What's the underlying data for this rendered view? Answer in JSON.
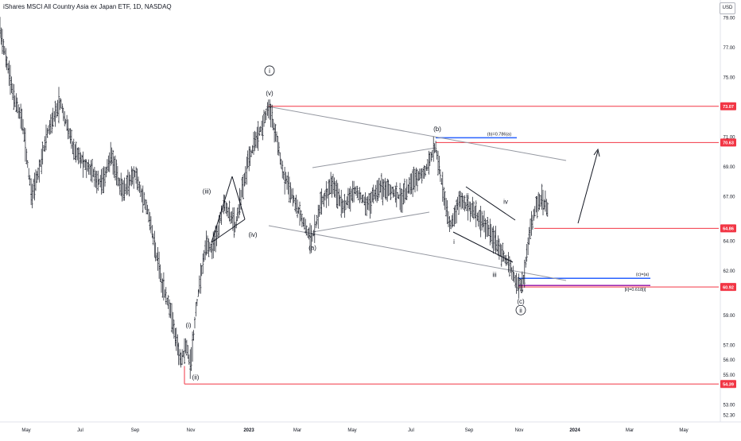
{
  "header": {
    "title": "iShares MSCI All Country Asia ex Japan ETF, 1D, NASDAQ",
    "currency": "USD"
  },
  "chart_data": {
    "type": "candlestick",
    "x_ticks": [
      "May",
      "Jul",
      "Sep",
      "Nov",
      "2023",
      "Mar",
      "May",
      "Jul",
      "Sep",
      "Nov",
      "2024",
      "Mar",
      "May"
    ],
    "y_ticks": [
      "79.00",
      "77.00",
      "75.00",
      "71.00",
      "69.00",
      "67.00",
      "64.00",
      "62.00",
      "59.00",
      "57.00",
      "56.00",
      "55.00",
      "53.00",
      "52.30"
    ],
    "ylim": [
      52.0,
      80.0
    ],
    "price_path": [
      [
        0,
        78.2
      ],
      [
        18,
        73.6
      ],
      [
        28,
        72.1
      ],
      [
        40,
        67.0
      ],
      [
        48,
        68.6
      ],
      [
        60,
        71.3
      ],
      [
        76,
        73.4
      ],
      [
        92,
        70.2
      ],
      [
        110,
        69.0
      ],
      [
        128,
        67.8
      ],
      [
        140,
        69.7
      ],
      [
        154,
        67.2
      ],
      [
        170,
        68.6
      ],
      [
        186,
        66.0
      ],
      [
        195,
        63.6
      ],
      [
        204,
        61.1
      ],
      [
        214,
        59.4
      ],
      [
        222,
        57.2
      ],
      [
        228,
        55.9
      ],
      [
        234,
        57.2
      ],
      [
        240,
        55.4
      ],
      [
        246,
        59.2
      ],
      [
        252,
        61.5
      ],
      [
        260,
        63.8
      ],
      [
        268,
        63.4
      ],
      [
        282,
        66.6
      ],
      [
        296,
        65.0
      ],
      [
        312,
        69.4
      ],
      [
        326,
        71.3
      ],
      [
        338,
        73.0
      ],
      [
        348,
        71.0
      ],
      [
        356,
        68.6
      ],
      [
        368,
        67.0
      ],
      [
        380,
        65.5
      ],
      [
        392,
        64.0
      ],
      [
        404,
        66.6
      ],
      [
        418,
        67.8
      ],
      [
        432,
        66.2
      ],
      [
        446,
        67.5
      ],
      [
        462,
        66.4
      ],
      [
        478,
        67.7
      ],
      [
        492,
        67.4
      ],
      [
        506,
        66.8
      ],
      [
        520,
        68.2
      ],
      [
        534,
        68.6
      ],
      [
        548,
        70.4
      ],
      [
        556,
        67.8
      ],
      [
        566,
        65.0
      ],
      [
        578,
        66.8
      ],
      [
        592,
        66.2
      ],
      [
        606,
        65.3
      ],
      [
        620,
        64.3
      ],
      [
        630,
        63.3
      ],
      [
        642,
        62.2
      ],
      [
        650,
        61.0
      ],
      [
        658,
        61.3
      ],
      [
        666,
        64.4
      ],
      [
        674,
        66.4
      ],
      [
        682,
        66.8
      ],
      [
        690,
        66.0
      ]
    ],
    "levels": [
      {
        "label": "73.07",
        "value": 73.07,
        "color": "#f23645"
      },
      {
        "label": "70.63",
        "value": 70.63,
        "color": "#f23645"
      },
      {
        "label": "64.86",
        "value": 64.86,
        "color": "#f23645"
      },
      {
        "label": "60.92",
        "value": 60.92,
        "color": "#f23645"
      },
      {
        "label": "54.39",
        "value": 54.39,
        "color": "#f23645"
      }
    ],
    "fib_levels": [
      {
        "text": "(b)=0.786(a)",
        "value": 70.95,
        "color": "#2962ff"
      },
      {
        "text": "(c)=(a)",
        "value": 61.5,
        "color": "#2962ff"
      },
      {
        "text": "[ii]=0.618[i]",
        "value": 61.02,
        "color": "#9c27b0"
      }
    ],
    "wave_labels": [
      {
        "text": "(i)",
        "value": 58.2
      },
      {
        "text": "(ii)",
        "value": 54.7
      },
      {
        "text": "(iii)",
        "value": 67.2
      },
      {
        "text": "(iv)",
        "value": 64.3
      },
      {
        "text": "(v)",
        "value": 73.8
      },
      {
        "text": "i",
        "value": 75.3,
        "circled": true
      },
      {
        "text": "(a)",
        "value": 63.4
      },
      {
        "text": "(b)",
        "value": 71.4
      },
      {
        "text": "ii",
        "value": 66.9
      },
      {
        "text": "iv",
        "value": 66.5
      },
      {
        "text": "i",
        "value": 63.8
      },
      {
        "text": "iii",
        "value": 61.6
      },
      {
        "text": "v",
        "value": 60.5
      },
      {
        "text": "(c)",
        "value": 59.8
      },
      {
        "text": "ii",
        "value": 59.2,
        "circled": true
      }
    ]
  }
}
